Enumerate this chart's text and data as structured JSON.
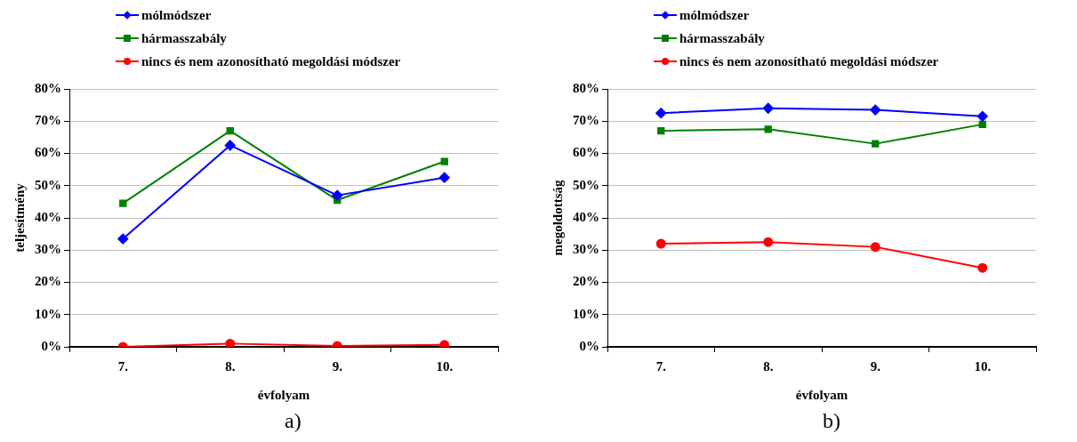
{
  "chart_data": [
    {
      "type": "line",
      "xlabel": "évfolyam",
      "ylabel": "teljesítmény",
      "categories": [
        "7.",
        "8.",
        "9.",
        "10."
      ],
      "series": [
        {
          "name": "mólmódszer",
          "color": "#0000ff",
          "marker": "diamond",
          "values": [
            33.5,
            62.5,
            47,
            52.5
          ]
        },
        {
          "name": "hármasszabály",
          "color": "#008000",
          "marker": "square",
          "values": [
            44.5,
            67,
            45.5,
            57.5
          ]
        },
        {
          "name": "nincs és nem azonosítható megoldási módszer",
          "color": "#ff0000",
          "marker": "circle",
          "values": [
            0,
            1,
            0.3,
            0.6
          ]
        }
      ],
      "ylim": [
        0,
        80
      ],
      "yticks": [
        {
          "value": 0,
          "label": "0%"
        },
        {
          "value": 10,
          "label": "10%"
        },
        {
          "value": 20,
          "label": "20%"
        },
        {
          "value": 30,
          "label": "30%"
        },
        {
          "value": 40,
          "label": "40%"
        },
        {
          "value": 50,
          "label": "50%"
        },
        {
          "value": 60,
          "label": "60%"
        },
        {
          "value": 70,
          "label": "70%"
        },
        {
          "value": 80,
          "label": "80%"
        }
      ],
      "grid": "y",
      "legend": "top",
      "annotations": [
        "a)"
      ]
    },
    {
      "type": "line",
      "xlabel": "évfolyam",
      "ylabel": "megoldottság",
      "categories": [
        "7.",
        "8.",
        "9.",
        "10."
      ],
      "series": [
        {
          "name": "mólmódszer",
          "color": "#0000ff",
          "marker": "diamond",
          "values": [
            72.5,
            74,
            73.5,
            71.5
          ]
        },
        {
          "name": "hármasszabály",
          "color": "#008000",
          "marker": "square",
          "values": [
            67,
            67.5,
            63,
            69
          ]
        },
        {
          "name": "nincs és nem azonosítható megoldási módszer",
          "color": "#ff0000",
          "marker": "circle",
          "values": [
            32,
            32.5,
            31,
            24.5
          ]
        }
      ],
      "ylim": [
        0,
        80
      ],
      "yticks": [
        {
          "value": 0,
          "label": "0%"
        },
        {
          "value": 10,
          "label": "10%"
        },
        {
          "value": 20,
          "label": "20%"
        },
        {
          "value": 30,
          "label": "30%"
        },
        {
          "value": 40,
          "label": "40%"
        },
        {
          "value": 50,
          "label": "50%"
        },
        {
          "value": 60,
          "label": "60%"
        },
        {
          "value": 70,
          "label": "70%"
        },
        {
          "value": 80,
          "label": "80%"
        }
      ],
      "grid": "y",
      "legend": "top",
      "annotations": [
        "b)"
      ]
    }
  ]
}
